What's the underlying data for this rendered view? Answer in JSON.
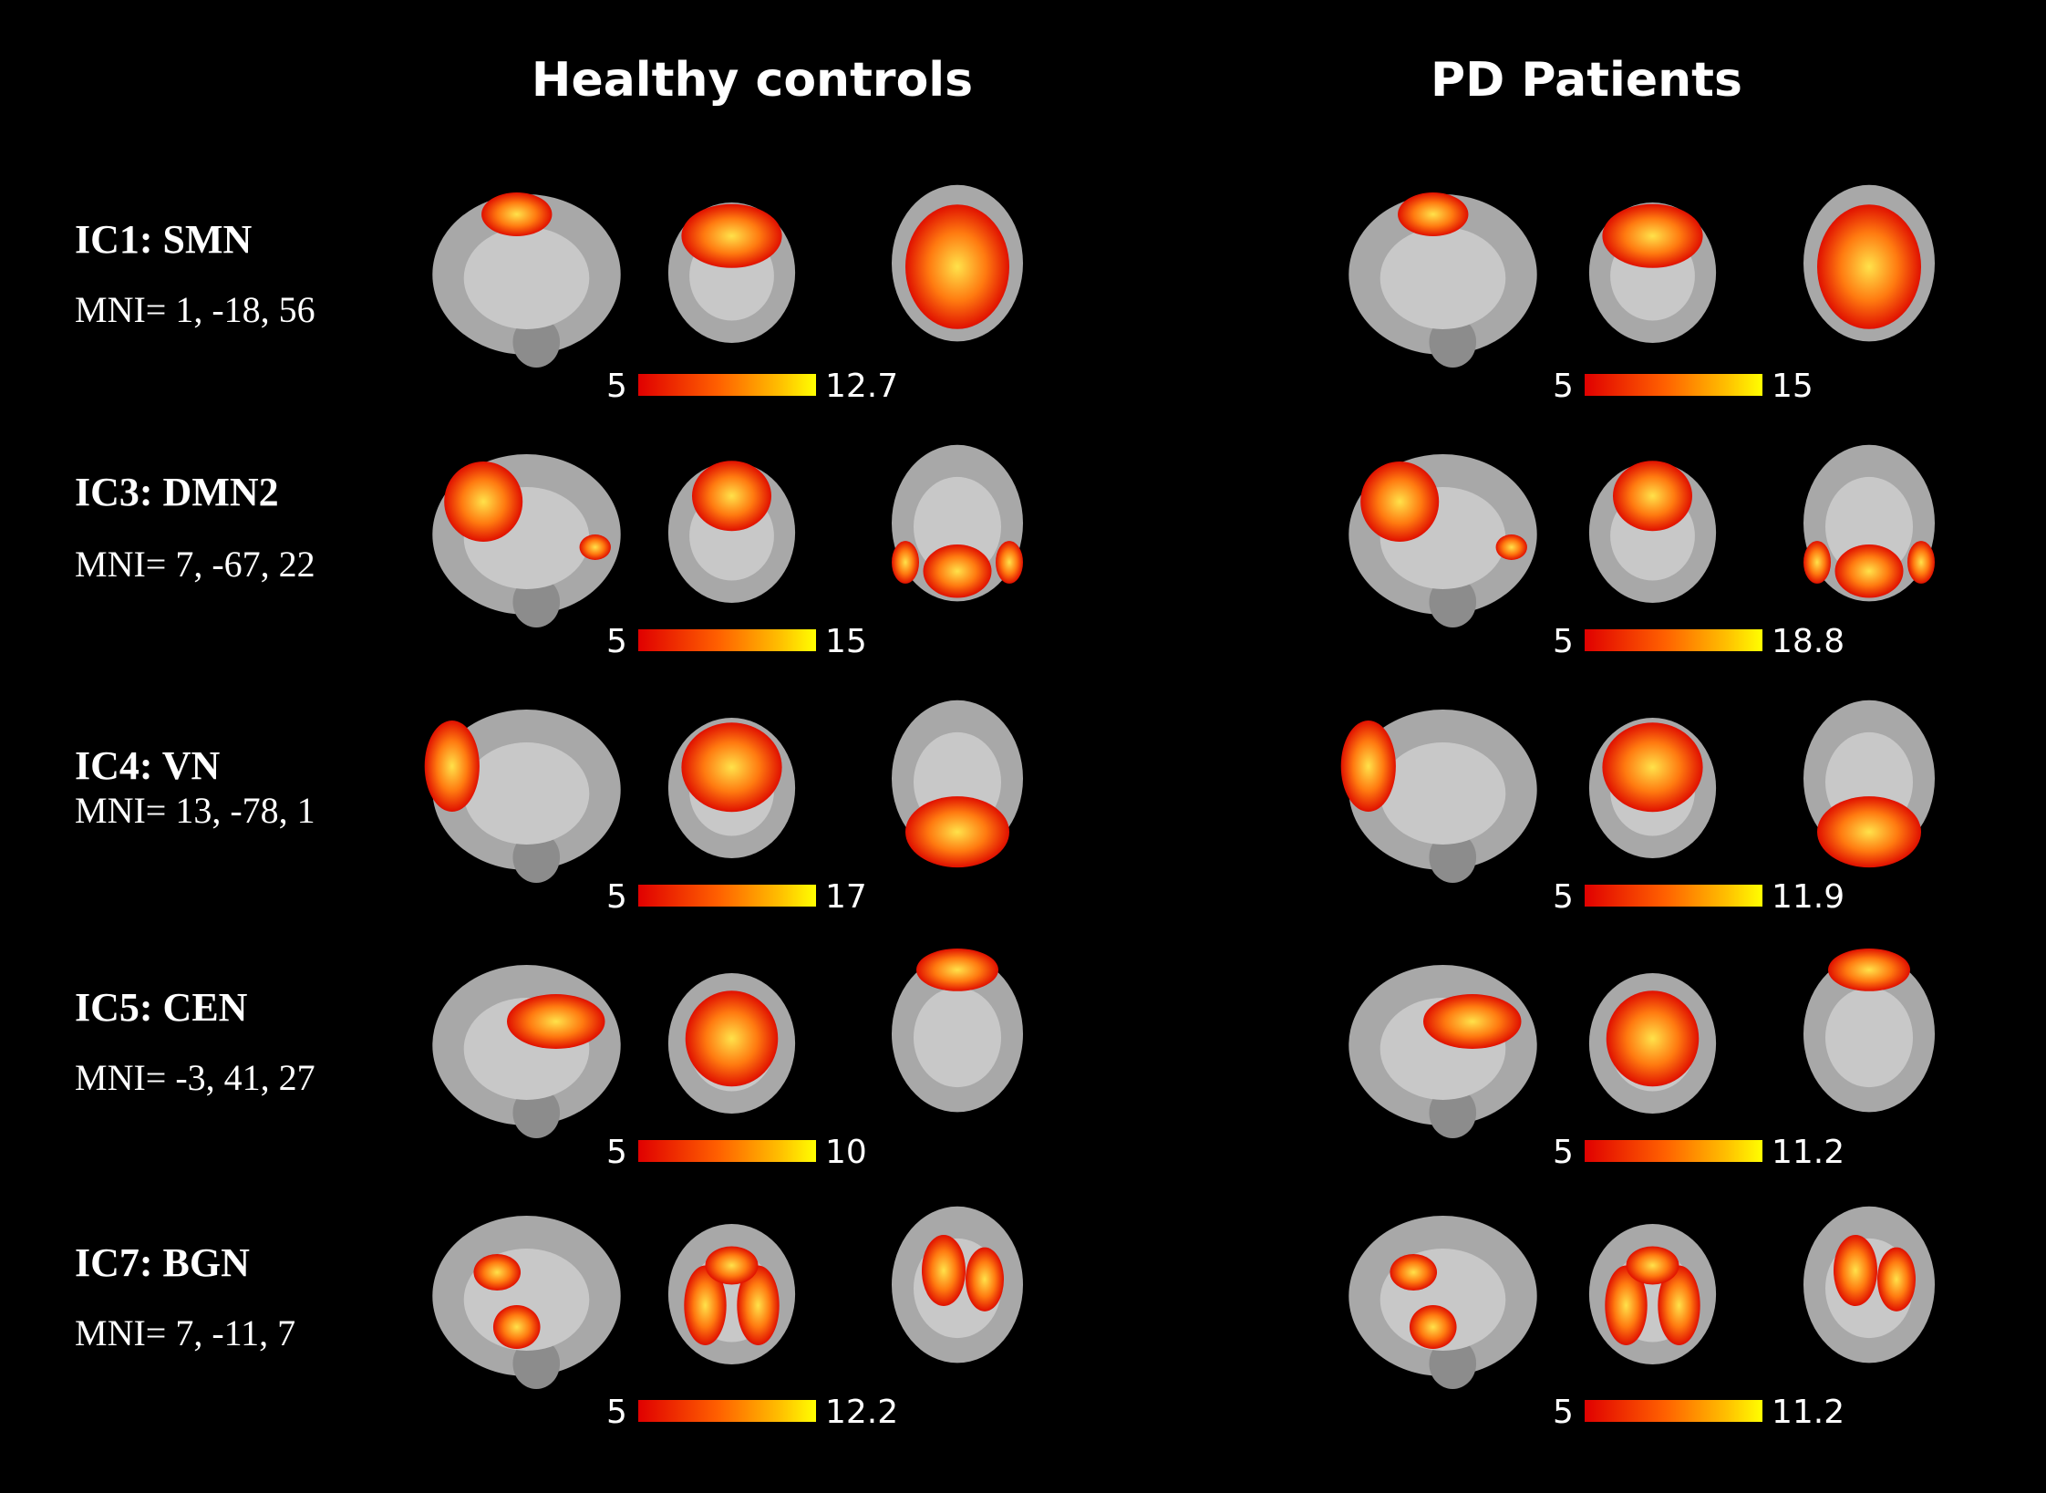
{
  "groups": [
    "Healthy controls",
    "PD Patients"
  ],
  "components": [
    {
      "name": "IC1: SMN",
      "mni": "MNI= 1, -18, 56",
      "hc_scale": {
        "min": "5",
        "max": "12.7"
      },
      "pd_scale": {
        "min": "5",
        "max": "15"
      }
    },
    {
      "name": "IC3: DMN2",
      "mni": "MNI= 7, -67, 22",
      "hc_scale": {
        "min": "5",
        "max": "15"
      },
      "pd_scale": {
        "min": "5",
        "max": "18.8"
      }
    },
    {
      "name": "IC4: VN",
      "mni": "MNI= 13, -78, 1",
      "hc_scale": {
        "min": "5",
        "max": "17"
      },
      "pd_scale": {
        "min": "5",
        "max": "11.9"
      }
    },
    {
      "name": "IC5: CEN",
      "mni": "MNI= -3, 41, 27",
      "hc_scale": {
        "min": "5",
        "max": "10"
      },
      "pd_scale": {
        "min": "5",
        "max": "11.2"
      }
    },
    {
      "name": "IC7: BGN",
      "mni": "MNI= 7, -11, 7",
      "hc_scale": {
        "min": "5",
        "max": "12.2"
      },
      "pd_scale": {
        "min": "5",
        "max": "11.2"
      }
    }
  ],
  "colors": {
    "background": "#000000",
    "colorbar_low": "#e00000",
    "colorbar_high": "#ffff00",
    "brain": "#a8a8a8"
  }
}
